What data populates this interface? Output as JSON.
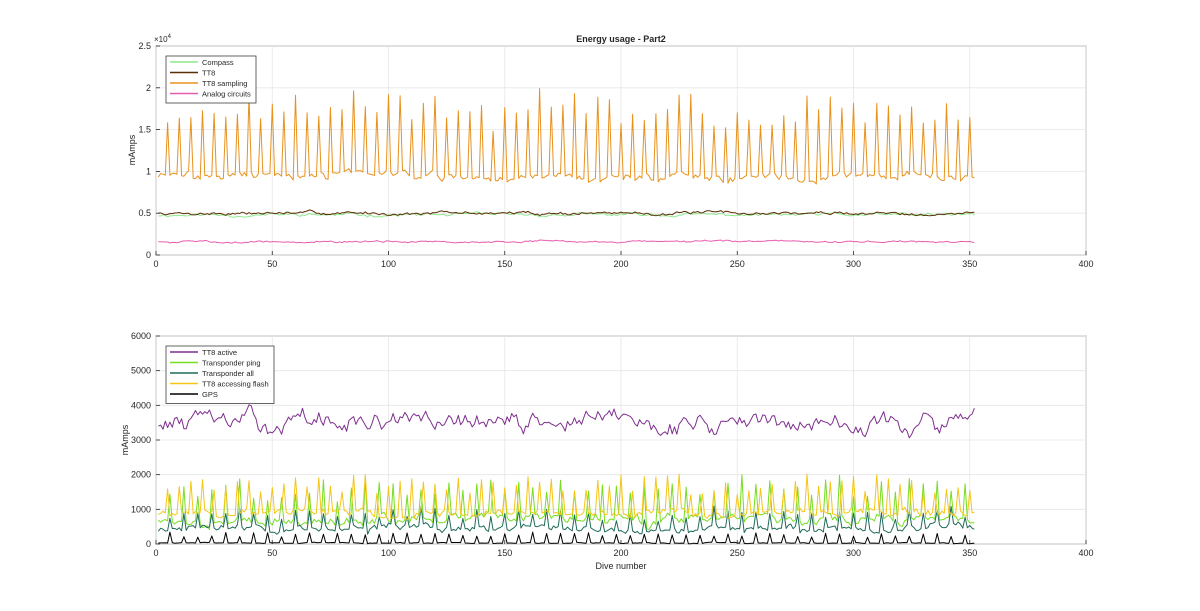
{
  "chart_data": [
    {
      "type": "line",
      "title": "Energy usage - Part2",
      "xlabel": "",
      "ylabel": "mAmps",
      "xlim": [
        0,
        400
      ],
      "ylim": [
        0,
        25000
      ],
      "xticks": [
        0,
        50,
        100,
        150,
        200,
        250,
        300,
        350,
        400
      ],
      "yticks": [
        0,
        5000,
        10000,
        15000,
        20000,
        25000
      ],
      "yticklabels": [
        "0",
        "0.5",
        "1",
        "1.5",
        "2",
        "2.5"
      ],
      "exponent_label": "×10",
      "exponent_power": "4",
      "grid": true,
      "legend_location": "top-left",
      "n_points": 352,
      "series": [
        {
          "name": "Compass",
          "color": "#8ee88e",
          "base": 4800,
          "amp": 250,
          "spike": 0,
          "spike_period": 0,
          "seed": 11
        },
        {
          "name": "TT8",
          "color": "#5c2e06",
          "base": 5000,
          "amp": 250,
          "spike": 0,
          "spike_period": 0,
          "seed": 7
        },
        {
          "name": "TT8 sampling",
          "color": "#e8921e",
          "base": 9500,
          "amp": 700,
          "spike": 9500,
          "spike_period": 5,
          "seed": 3
        },
        {
          "name": "Analog circuits",
          "color": "#e85cb0",
          "base": 1600,
          "amp": 150,
          "spike": 0,
          "spike_period": 0,
          "seed": 5
        }
      ]
    },
    {
      "type": "line",
      "title": "",
      "xlabel": "Dive number",
      "ylabel": "mAmps",
      "xlim": [
        0,
        400
      ],
      "ylim": [
        0,
        6000
      ],
      "xticks": [
        0,
        50,
        100,
        150,
        200,
        250,
        300,
        350,
        400
      ],
      "yticks": [
        0,
        1000,
        2000,
        3000,
        4000,
        5000,
        6000
      ],
      "yticklabels": [
        "0",
        "1000",
        "2000",
        "3000",
        "4000",
        "5000",
        "6000"
      ],
      "grid": true,
      "legend_location": "top-left",
      "n_points": 352,
      "series": [
        {
          "name": "TT8 active",
          "color": "#7e2f8e",
          "base": 3500,
          "amp": 350,
          "spike": 0,
          "spike_period": 0,
          "seed": 13
        },
        {
          "name": "Transponder ping",
          "color": "#77dd22",
          "base": 700,
          "amp": 200,
          "spike": 1100,
          "spike_period": 6,
          "seed": 17
        },
        {
          "name": "Transponder all",
          "color": "#1f6b5a",
          "base": 450,
          "amp": 150,
          "spike": 500,
          "spike_period": 6,
          "seed": 19
        },
        {
          "name": "TT8 accessing flash",
          "color": "#f5c518",
          "base": 900,
          "amp": 150,
          "spike": 1000,
          "spike_period": 5,
          "seed": 23
        },
        {
          "name": "GPS",
          "color": "#000000",
          "base": 30,
          "amp": 20,
          "spike": 280,
          "spike_period": 6,
          "seed": 29
        }
      ]
    }
  ]
}
